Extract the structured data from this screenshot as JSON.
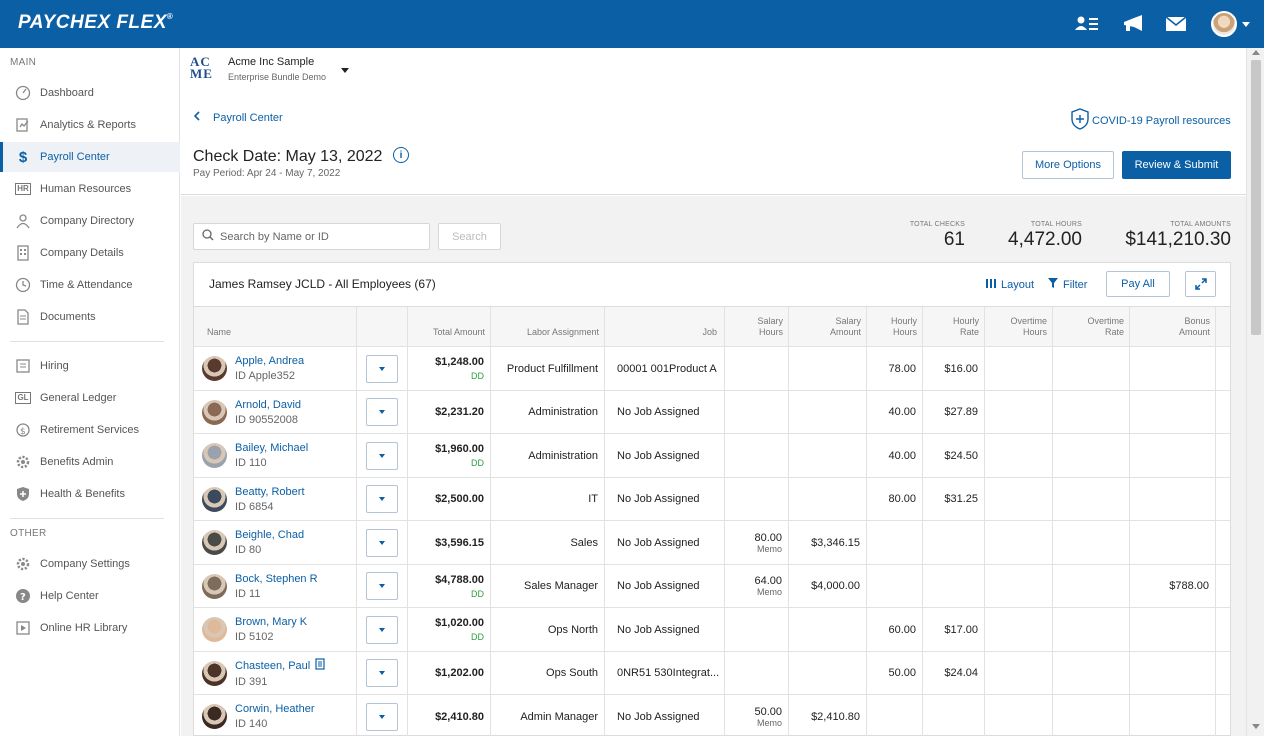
{
  "app": {
    "brand": "PAYCHEX FLEX",
    "brand_mark": "®"
  },
  "topbar": {
    "icons": [
      "people-list-icon",
      "megaphone-icon",
      "mail-icon",
      "user-avatar"
    ]
  },
  "sidebar": {
    "main_label": "MAIN",
    "other_label": "OTHER",
    "items": [
      {
        "label": "Dashboard",
        "icon": "dashboard-icon"
      },
      {
        "label": "Analytics & Reports",
        "icon": "analytics-icon"
      },
      {
        "label": "Payroll Center",
        "icon": "dollar-icon",
        "active": true
      },
      {
        "label": "Human Resources",
        "icon": "hr-icon"
      },
      {
        "label": "Company Directory",
        "icon": "directory-icon"
      },
      {
        "label": "Company Details",
        "icon": "building-icon"
      },
      {
        "label": "Time & Attendance",
        "icon": "clock-icon"
      },
      {
        "label": "Documents",
        "icon": "document-icon"
      },
      {
        "label": "Hiring",
        "icon": "hiring-icon"
      },
      {
        "label": "General Ledger",
        "icon": "gl-icon"
      },
      {
        "label": "Retirement Services",
        "icon": "retirement-icon"
      },
      {
        "label": "Benefits Admin",
        "icon": "gear-icon"
      },
      {
        "label": "Health & Benefits",
        "icon": "shield-icon"
      }
    ],
    "other_items": [
      {
        "label": "Company Settings",
        "icon": "settings-icon"
      },
      {
        "label": "Help Center",
        "icon": "help-icon"
      },
      {
        "label": "Online HR Library",
        "icon": "video-icon"
      }
    ]
  },
  "header": {
    "logo_line1": "AC",
    "logo_line2": "ME",
    "company": "Acme Inc Sample",
    "company_sub": "Enterprise Bundle Demo",
    "back_label": "Payroll Center",
    "covid_link": "COVID-19 Payroll resources",
    "check_date": "Check Date: May 13, 2022",
    "pay_period": "Pay Period:  Apr 24 - May 7, 2022",
    "more_options": "More Options",
    "review_submit": "Review & Submit"
  },
  "search": {
    "placeholder": "Search by Name or ID",
    "button": "Search"
  },
  "totals": {
    "checks_label": "TOTAL CHECKS",
    "checks": "61",
    "hours_label": "TOTAL HOURS",
    "hours": "4,472.00",
    "amounts_label": "TOTAL AMOUNTS",
    "amounts": "$141,210.30"
  },
  "panel": {
    "title": "James Ramsey JCLD - All Employees (67)",
    "layout": "Layout",
    "filter": "Filter",
    "pay_all": "Pay All"
  },
  "table": {
    "headers": {
      "name": "Name",
      "total_amount": "Total Amount",
      "labor": "Labor Assignment",
      "job": "Job",
      "salary_hours_1": "Salary",
      "salary_hours_2": "Hours",
      "salary_amount_1": "Salary",
      "salary_amount_2": "Amount",
      "hourly_hours_1": "Hourly",
      "hourly_hours_2": "Hours",
      "hourly_rate_1": "Hourly",
      "hourly_rate_2": "Rate",
      "ot_hours_1": "Overtime",
      "ot_hours_2": "Hours",
      "ot_rate_1": "Overtime",
      "ot_rate_2": "Rate",
      "bonus_1": "Bonus",
      "bonus_2": "Amount"
    },
    "rows": [
      {
        "name": "Apple, Andrea",
        "id": "ID Apple352",
        "total": "$1,248.00",
        "dd": "DD",
        "labor": "Product Fulfillment",
        "job": "00001 001Product A",
        "salary_hours": "",
        "memo": "",
        "salary_amount": "",
        "hourly_hours": "78.00",
        "hourly_rate": "$16.00",
        "bonus": "",
        "avatar": "#5a3a2e"
      },
      {
        "name": "Arnold, David",
        "id": "ID 90552008",
        "total": "$2,231.20",
        "dd": "",
        "labor": "Administration",
        "job": "No Job Assigned",
        "salary_hours": "",
        "memo": "",
        "salary_amount": "",
        "hourly_hours": "40.00",
        "hourly_rate": "$27.89",
        "bonus": "",
        "avatar": "#8a6a55"
      },
      {
        "name": "Bailey, Michael",
        "id": "ID 110",
        "total": "$1,960.00",
        "dd": "DD",
        "labor": "Administration",
        "job": "No Job Assigned",
        "salary_hours": "",
        "memo": "",
        "salary_amount": "",
        "hourly_hours": "40.00",
        "hourly_rate": "$24.50",
        "bonus": "",
        "avatar": "#9aa3ad"
      },
      {
        "name": "Beatty, Robert",
        "id": "ID 6854",
        "total": "$2,500.00",
        "dd": "",
        "labor": "IT",
        "job": "No Job Assigned",
        "salary_hours": "",
        "memo": "",
        "salary_amount": "",
        "hourly_hours": "80.00",
        "hourly_rate": "$31.25",
        "bonus": "",
        "avatar": "#3b4a5c"
      },
      {
        "name": "Beighle, Chad",
        "id": "ID 80",
        "total": "$3,596.15",
        "dd": "",
        "labor": "Sales",
        "job": "No Job Assigned",
        "salary_hours": "80.00",
        "memo": "Memo",
        "salary_amount": "$3,346.15",
        "hourly_hours": "",
        "hourly_rate": "",
        "bonus": "",
        "avatar": "#4a4a48"
      },
      {
        "name": "Bock, Stephen R",
        "id": "ID 11",
        "total": "$4,788.00",
        "dd": "DD",
        "labor": "Sales Manager",
        "job": "No Job Assigned",
        "salary_hours": "64.00",
        "memo": "Memo",
        "salary_amount": "$4,000.00",
        "hourly_hours": "",
        "hourly_rate": "",
        "bonus": "$788.00",
        "avatar": "#7d6b5b"
      },
      {
        "name": "Brown, Mary K",
        "id": "ID 5102",
        "total": "$1,020.00",
        "dd": "DD",
        "labor": "Ops North",
        "job": "No Job Assigned",
        "salary_hours": "",
        "memo": "",
        "salary_amount": "",
        "hourly_hours": "60.00",
        "hourly_rate": "$17.00",
        "bonus": "",
        "avatar": "#e0b89a"
      },
      {
        "name": "Chasteen, Paul",
        "id": "ID 391",
        "total": "$1,202.00",
        "dd": "",
        "labor": "Ops South",
        "job": "0NR51 530Integrat...",
        "salary_hours": "",
        "memo": "",
        "salary_amount": "",
        "hourly_hours": "50.00",
        "hourly_rate": "$24.04",
        "bonus": "",
        "avatar": "#4b3326",
        "note_icon": true
      },
      {
        "name": "Corwin, Heather",
        "id": "ID 140",
        "total": "$2,410.80",
        "dd": "",
        "labor": "Admin Manager",
        "job": "No Job Assigned",
        "salary_hours": "50.00",
        "memo": "Memo",
        "salary_amount": "$2,410.80",
        "hourly_hours": "",
        "hourly_rate": "",
        "bonus": "",
        "avatar": "#3a2a22"
      }
    ]
  }
}
